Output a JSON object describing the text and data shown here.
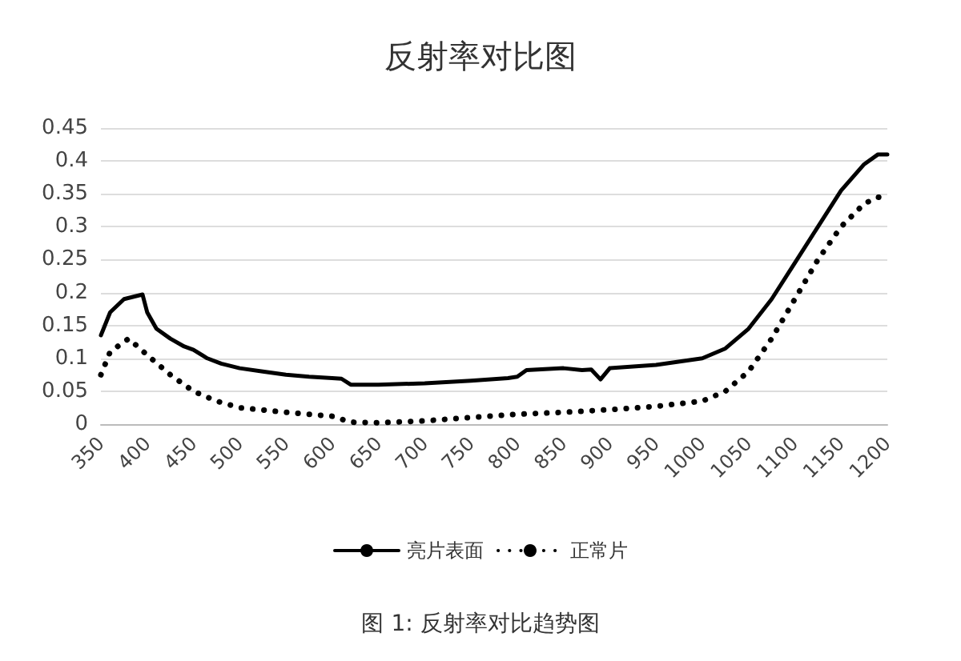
{
  "chart_data": {
    "type": "line",
    "title": "反射率对比图",
    "annotations": [
      "图 1: 反射率对比趋势图"
    ],
    "xlim": [
      350,
      1200
    ],
    "xticks": [
      350,
      400,
      450,
      500,
      550,
      600,
      650,
      700,
      750,
      800,
      850,
      900,
      950,
      1000,
      1050,
      1100,
      1150,
      1200
    ],
    "ylim": [
      0,
      0.45
    ],
    "yticks": [
      0,
      0.05,
      0.1,
      0.15,
      0.2,
      0.25,
      0.3,
      0.35,
      0.4,
      0.45
    ],
    "grid": "y",
    "legend": "bottom",
    "marker": "none",
    "series": [
      {
        "name": "亮片表面",
        "color": "#000000",
        "line_style": "solid",
        "x": [
          350,
          360,
          375,
          395,
          400,
          410,
          425,
          440,
          450,
          465,
          480,
          500,
          525,
          550,
          575,
          600,
          610,
          620,
          650,
          700,
          750,
          790,
          800,
          810,
          850,
          870,
          880,
          890,
          900,
          950,
          1000,
          1025,
          1050,
          1075,
          1100,
          1125,
          1150,
          1175,
          1190,
          1200
        ],
        "values": [
          0.135,
          0.17,
          0.19,
          0.197,
          0.17,
          0.145,
          0.13,
          0.118,
          0.113,
          0.1,
          0.092,
          0.085,
          0.08,
          0.075,
          0.072,
          0.07,
          0.069,
          0.06,
          0.06,
          0.062,
          0.066,
          0.07,
          0.072,
          0.082,
          0.085,
          0.082,
          0.083,
          0.068,
          0.085,
          0.09,
          0.1,
          0.115,
          0.145,
          0.19,
          0.245,
          0.3,
          0.355,
          0.395,
          0.41,
          0.41
        ]
      },
      {
        "name": "正常片",
        "color": "#000000",
        "line_style": "dotted",
        "x": [
          350,
          360,
          380,
          400,
          425,
          450,
          475,
          500,
          550,
          600,
          620,
          650,
          700,
          750,
          800,
          850,
          900,
          950,
          1000,
          1025,
          1050,
          1075,
          1100,
          1125,
          1150,
          1175,
          1190,
          1200
        ],
        "values": [
          0.075,
          0.11,
          0.13,
          0.105,
          0.075,
          0.05,
          0.035,
          0.025,
          0.018,
          0.012,
          0.003,
          0.002,
          0.005,
          0.01,
          0.015,
          0.018,
          0.022,
          0.027,
          0.035,
          0.05,
          0.08,
          0.13,
          0.19,
          0.25,
          0.3,
          0.335,
          0.345,
          0.343
        ]
      }
    ]
  }
}
